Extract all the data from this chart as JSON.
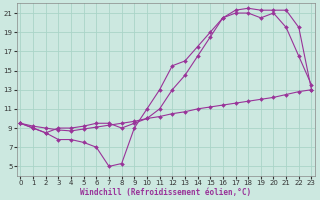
{
  "bg_color": "#cce8e0",
  "grid_color": "#aad4c8",
  "line_color": "#993399",
  "xlabel": "Windchill (Refroidissement éolien,°C)",
  "xlim": [
    -0.3,
    23.3
  ],
  "ylim": [
    4,
    22
  ],
  "xticks": [
    0,
    1,
    2,
    3,
    4,
    5,
    6,
    7,
    8,
    9,
    10,
    11,
    12,
    13,
    14,
    15,
    16,
    17,
    18,
    19,
    20,
    21,
    22,
    23
  ],
  "yticks": [
    5,
    7,
    9,
    11,
    13,
    15,
    17,
    19,
    21
  ],
  "curve1_x": [
    0,
    1,
    2,
    3,
    4,
    5,
    6,
    7,
    8,
    9,
    10,
    11,
    12,
    13,
    14,
    15,
    16,
    17,
    18,
    19,
    20,
    21,
    22,
    23
  ],
  "curve1_y": [
    9.5,
    9.2,
    9.0,
    8.8,
    8.7,
    8.9,
    9.1,
    9.3,
    9.5,
    9.7,
    10.0,
    10.2,
    10.5,
    10.7,
    11.0,
    11.2,
    11.4,
    11.6,
    11.8,
    12.0,
    12.2,
    12.5,
    12.8,
    13.0
  ],
  "curve2_x": [
    0,
    1,
    2,
    3,
    4,
    5,
    6,
    7,
    8,
    9,
    10,
    11,
    12,
    13,
    14,
    15,
    16,
    17,
    18,
    19,
    20,
    21,
    22,
    23
  ],
  "curve2_y": [
    9.5,
    9.0,
    8.5,
    7.8,
    7.8,
    7.5,
    7.0,
    5.0,
    5.3,
    9.0,
    11.0,
    13.0,
    15.5,
    16.0,
    17.5,
    19.0,
    20.5,
    21.0,
    21.0,
    20.5,
    21.0,
    19.5,
    16.5,
    13.5
  ],
  "curve3_x": [
    0,
    1,
    2,
    3,
    4,
    5,
    6,
    7,
    8,
    9,
    10,
    11,
    12,
    13,
    14,
    15,
    16,
    17,
    18,
    19,
    20,
    21,
    22,
    23
  ],
  "curve3_y": [
    9.5,
    9.0,
    8.5,
    9.0,
    9.0,
    9.2,
    9.5,
    9.5,
    9.0,
    9.5,
    10.0,
    11.0,
    13.0,
    14.5,
    16.5,
    18.5,
    20.5,
    21.3,
    21.5,
    21.3,
    21.3,
    21.3,
    19.5,
    13.0
  ]
}
